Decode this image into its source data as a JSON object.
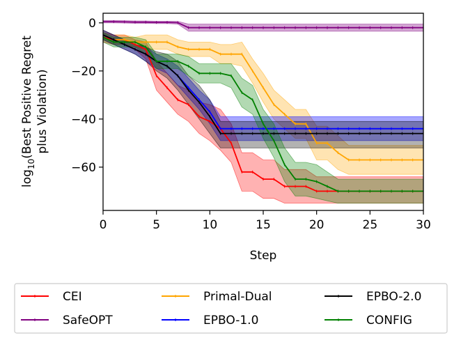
{
  "chart_data": {
    "type": "line",
    "title": "",
    "xlabel": "Step",
    "ylabel_main": "log",
    "ylabel_sub": "10",
    "ylabel_rest": "(Best Positive Regret",
    "ylabel_line2": "plus Violation)",
    "xlim": [
      0,
      30
    ],
    "ylim": [
      -78,
      4
    ],
    "xticks": [
      0,
      5,
      10,
      15,
      20,
      25,
      30
    ],
    "xtick_labels": [
      "0",
      "5",
      "10",
      "15",
      "20",
      "25",
      "30"
    ],
    "yticks": [
      0,
      -20,
      -40,
      -60
    ],
    "ytick_labels": [
      "0",
      "−20",
      "−40",
      "−60"
    ],
    "legend_placement": "below",
    "x": [
      0,
      1,
      2,
      3,
      4,
      5,
      6,
      7,
      8,
      9,
      10,
      11,
      12,
      13,
      14,
      15,
      16,
      17,
      18,
      19,
      20,
      21,
      22,
      23,
      24,
      25,
      26,
      27,
      28,
      29,
      30
    ],
    "series": [
      {
        "name": "CEI",
        "color": "#ff0000",
        "values": [
          -6,
          -7,
          -7,
          -9,
          -11,
          -22,
          -27,
          -32,
          -34,
          -39,
          -41,
          -44,
          -50,
          -62,
          -62,
          -65,
          -65,
          -68,
          -68,
          -68,
          -70,
          -70,
          -70,
          -70,
          -70,
          -70,
          -70,
          -70,
          -70,
          -70,
          -70
        ],
        "lower": [
          -8,
          -9,
          -9,
          -11,
          -15,
          -28,
          -33,
          -38,
          -41,
          -46,
          -49,
          -53,
          -58,
          -70,
          -70,
          -73,
          -73,
          -75,
          -75,
          -75,
          -75,
          -75,
          -75,
          -75,
          -75,
          -75,
          -75,
          -75,
          -75,
          -75,
          -75
        ],
        "upper": [
          -4,
          -5,
          -5,
          -7,
          -8,
          -16,
          -21,
          -26,
          -28,
          -33,
          -34,
          -36,
          -42,
          -54,
          -54,
          -57,
          -57,
          -61,
          -61,
          -61,
          -64,
          -64,
          -64,
          -64,
          -64,
          -64,
          -64,
          -64,
          -64,
          -64,
          -64
        ]
      },
      {
        "name": "SafeOPT",
        "color": "#800080",
        "values": [
          0.5,
          0.5,
          0.4,
          0.3,
          0.3,
          0.2,
          0.2,
          0.1,
          -2,
          -2,
          -2,
          -2,
          -2,
          -2,
          -2,
          -2,
          -2,
          -2,
          -2,
          -2,
          -2,
          -2,
          -2,
          -2,
          -2,
          -2,
          -2,
          -2,
          -2,
          -2,
          -2
        ],
        "lower": [
          0,
          0,
          -0.1,
          -0.2,
          -0.2,
          -0.3,
          -0.3,
          -0.5,
          -3.5,
          -3.5,
          -3.5,
          -3.5,
          -3.5,
          -3.5,
          -3.5,
          -3.5,
          -3.5,
          -3.5,
          -3.5,
          -3.5,
          -3.5,
          -3.5,
          -3.5,
          -3.5,
          -3.5,
          -3.5,
          -3.5,
          -3.5,
          -3.5,
          -3.5,
          -3.5
        ],
        "upper": [
          1,
          1,
          0.9,
          0.8,
          0.8,
          0.7,
          0.7,
          0.6,
          -0.5,
          -0.5,
          -0.5,
          -0.5,
          -0.5,
          -0.5,
          -0.5,
          -0.5,
          -0.5,
          -0.5,
          -0.5,
          -0.5,
          -0.5,
          -0.5,
          -0.5,
          -0.5,
          -0.5,
          -0.5,
          -0.5,
          -0.5,
          -0.5,
          -0.5,
          -0.5
        ]
      },
      {
        "name": "Primal-Dual",
        "color": "#ffa500",
        "values": [
          -5,
          -7,
          -7,
          -8,
          -8,
          -8,
          -8,
          -10,
          -11,
          -11,
          -11,
          -13,
          -13,
          -13,
          -20,
          -27,
          -34,
          -38,
          -42,
          -42,
          -50,
          -50,
          -54,
          -57,
          -57,
          -57,
          -57,
          -57,
          -57,
          -57,
          -57
        ],
        "lower": [
          -7,
          -9,
          -9,
          -10,
          -11,
          -11,
          -11,
          -13,
          -14,
          -14,
          -14,
          -17,
          -17,
          -18,
          -25,
          -33,
          -40,
          -44,
          -48,
          -48,
          -57,
          -57,
          -61,
          -63,
          -63,
          -63,
          -63,
          -63,
          -63,
          -63,
          -63
        ],
        "upper": [
          -3,
          -5,
          -5,
          -6,
          -5,
          -5,
          -5,
          -7,
          -8,
          -8,
          -8,
          -9,
          -9,
          -8,
          -15,
          -21,
          -28,
          -32,
          -36,
          -36,
          -43,
          -43,
          -47,
          -51,
          -51,
          -51,
          -51,
          -51,
          -51,
          -51,
          -51
        ]
      },
      {
        "name": "EPBO-1.0",
        "color": "#0000ff",
        "values": [
          -5,
          -7,
          -9,
          -11,
          -13,
          -16,
          -18,
          -22,
          -27,
          -32,
          -37,
          -44,
          -44,
          -44,
          -44,
          -44,
          -44,
          -44,
          -44,
          -44,
          -44,
          -44,
          -44,
          -44,
          -44,
          -44,
          -44,
          -44,
          -44,
          -44,
          -44
        ],
        "lower": [
          -7,
          -9,
          -11,
          -13,
          -16,
          -19,
          -21,
          -26,
          -31,
          -36,
          -42,
          -49,
          -49,
          -49,
          -49,
          -49,
          -49,
          -49,
          -49,
          -49,
          -49,
          -49,
          -49,
          -49,
          -49,
          -49,
          -49,
          -49,
          -49,
          -49,
          -49
        ],
        "upper": [
          -3,
          -5,
          -7,
          -9,
          -10,
          -13,
          -15,
          -18,
          -23,
          -28,
          -32,
          -39,
          -39,
          -39,
          -39,
          -39,
          -39,
          -39,
          -39,
          -39,
          -39,
          -39,
          -39,
          -39,
          -39,
          -39,
          -39,
          -39,
          -39,
          -39,
          -39
        ]
      },
      {
        "name": "EPBO-2.0",
        "color": "#000000",
        "values": [
          -5,
          -7,
          -9,
          -11,
          -13,
          -16,
          -18,
          -22,
          -28,
          -33,
          -39,
          -46,
          -46,
          -46,
          -46,
          -46,
          -46,
          -46,
          -46,
          -46,
          -46,
          -46,
          -46,
          -46,
          -46,
          -46,
          -46,
          -46,
          -46,
          -46,
          -46
        ],
        "lower": [
          -7,
          -9,
          -11,
          -13,
          -16,
          -20,
          -23,
          -28,
          -34,
          -40,
          -46,
          -52,
          -52,
          -52,
          -52,
          -52,
          -52,
          -52,
          -52,
          -52,
          -52,
          -52,
          -52,
          -52,
          -52,
          -52,
          -52,
          -52,
          -52,
          -52,
          -52
        ],
        "upper": [
          -3,
          -5,
          -7,
          -9,
          -10,
          -12,
          -13,
          -16,
          -22,
          -26,
          -32,
          -41,
          -41,
          -41,
          -41,
          -41,
          -41,
          -41,
          -41,
          -41,
          -41,
          -41,
          -41,
          -41,
          -41,
          -41,
          -41,
          -41,
          -41,
          -41,
          -41
        ]
      },
      {
        "name": "CONFIG",
        "color": "#008000",
        "values": [
          -6,
          -8,
          -8,
          -8,
          -10,
          -16,
          -16,
          -16,
          -18,
          -21,
          -21,
          -21,
          -22,
          -29,
          -32,
          -42,
          -49,
          -59,
          -65,
          -65,
          -66,
          -68,
          -70,
          -70,
          -70,
          -70,
          -70,
          -70,
          -70,
          -70,
          -70
        ],
        "lower": [
          -8,
          -10,
          -10,
          -10,
          -13,
          -19,
          -19,
          -19,
          -22,
          -25,
          -25,
          -25,
          -27,
          -35,
          -38,
          -48,
          -56,
          -66,
          -72,
          -72,
          -73,
          -74,
          -75,
          -75,
          -75,
          -75,
          -75,
          -75,
          -75,
          -75,
          -75
        ],
        "upper": [
          -4,
          -6,
          -6,
          -6,
          -7,
          -13,
          -13,
          -13,
          -14,
          -17,
          -17,
          -17,
          -17,
          -23,
          -26,
          -36,
          -42,
          -52,
          -58,
          -58,
          -59,
          -62,
          -65,
          -65,
          -65,
          -65,
          -65,
          -65,
          -65,
          -65,
          -65
        ]
      }
    ],
    "legend_order": [
      "CEI",
      "SafeOPT",
      "Primal-Dual",
      "EPBO-1.0",
      "EPBO-2.0",
      "CONFIG"
    ]
  }
}
